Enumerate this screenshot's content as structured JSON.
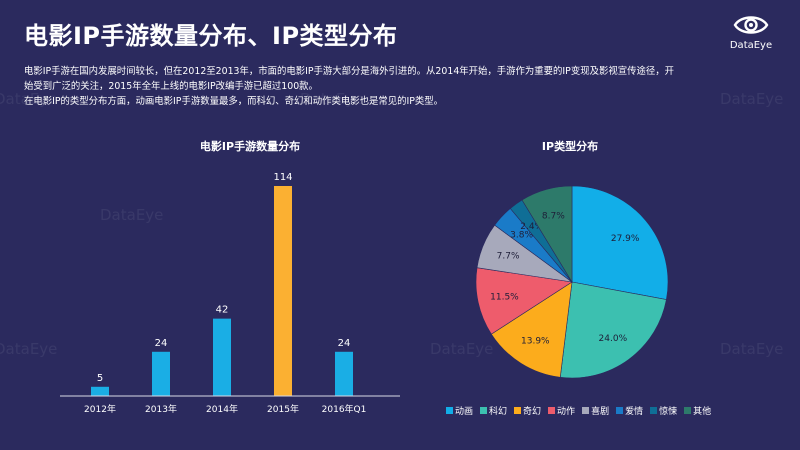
{
  "page": {
    "title": "电影IP手游数量分布、IP类型分布",
    "logo_text": "DataEye",
    "watermark_text": "DataEye",
    "paragraphs": [
      "电影IP手游在国内发展时间较长，但在2012至2013年，市面的电影IP手游大部分是海外引进的。从2014年开始，手游作为重要的IP变现及影视宣传途径，开",
      "始受到广泛的关注，2015年全年上线的电影IP改编手游已超过100款。",
      "在电影IP的类型分布方面，动画电影IP手游数量最多，而科幻、奇幻和动作类电影也是常见的IP类型。"
    ]
  },
  "chart_data": [
    {
      "type": "bar",
      "title": "电影IP手游数量分布",
      "categories": [
        "2012年",
        "2013年",
        "2014年",
        "2015年",
        "2016年Q1"
      ],
      "values": [
        5,
        24,
        42,
        114,
        24
      ],
      "colors": [
        "#1aaee5",
        "#1aaee5",
        "#1aaee5",
        "#fbb032",
        "#1aaee5"
      ],
      "xlabel": "",
      "ylabel": "",
      "ylim": [
        0,
        114
      ],
      "grid": false
    },
    {
      "type": "pie",
      "title": "IP类型分布",
      "legend_position": "bottom",
      "slices": [
        {
          "label": "动画",
          "value": 27.9,
          "text": "27.9%",
          "color": "#12aee8"
        },
        {
          "label": "科幻",
          "value": 24.0,
          "text": "24.0%",
          "color": "#3cc0b0"
        },
        {
          "label": "奇幻",
          "value": 13.9,
          "text": "13.9%",
          "color": "#fcac1c"
        },
        {
          "label": "动作",
          "value": 11.5,
          "text": "11.5%",
          "color": "#ee5c6c"
        },
        {
          "label": "喜剧",
          "value": 7.7,
          "text": "7.7%",
          "color": "#a7a9bb"
        },
        {
          "label": "爱情",
          "value": 3.8,
          "text": "3.8%",
          "color": "#1a7bc8"
        },
        {
          "label": "惊悚",
          "value": 2.4,
          "text": "2.4%",
          "color": "#0f6e96"
        },
        {
          "label": "其他",
          "value": 8.7,
          "text": "8.7%",
          "color": "#2d7a6a"
        }
      ]
    }
  ]
}
